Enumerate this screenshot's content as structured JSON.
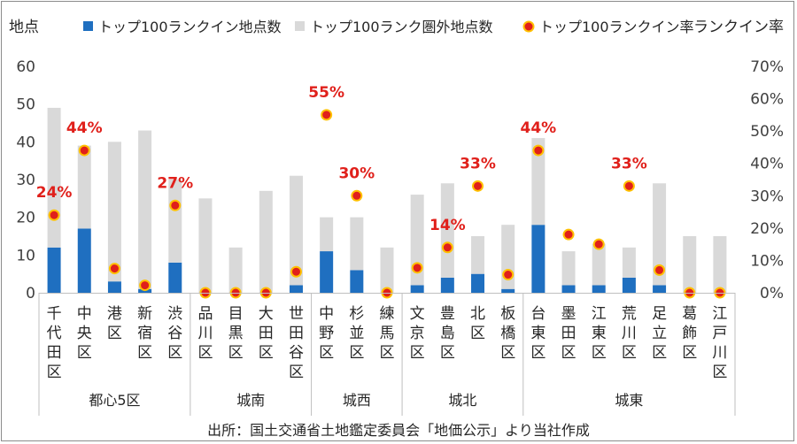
{
  "chart_data": {
    "type": "bar",
    "stacked": true,
    "y_left": {
      "title": "地点",
      "ylim": [
        0,
        60
      ],
      "ticks": [
        0,
        10,
        20,
        30,
        40,
        50,
        60
      ]
    },
    "y_right": {
      "title": "ランクイン率",
      "ylim": [
        0,
        70
      ],
      "ticks": [
        "0%",
        "10%",
        "20%",
        "30%",
        "40%",
        "50%",
        "60%",
        "70%"
      ]
    },
    "legend": {
      "placement": "top",
      "in_rank": "トップ100ランクイン地点数",
      "out_rank": "トップ100ランク圏外地点数",
      "rate": "トップ100ランクイン率"
    },
    "colors": {
      "in_rank": "#1f6fc0",
      "out_rank": "#d9d9d9",
      "rate_fill": "#e0201b",
      "rate_ring": "#ffc000",
      "label": "#e0201b"
    },
    "categories": [
      "千代田区",
      "中央区",
      "港区",
      "新宿区",
      "渋谷区",
      "品川区",
      "目黒区",
      "大田区",
      "世田谷区",
      "中野区",
      "杉並区",
      "練馬区",
      "文京区",
      "豊島区",
      "北区",
      "板橋区",
      "台東区",
      "墨田区",
      "江東区",
      "荒川区",
      "足立区",
      "葛飾区",
      "江戸川区"
    ],
    "series": [
      {
        "name": "トップ100ランクイン地点数",
        "values": [
          12,
          17,
          3,
          1,
          8,
          0,
          0,
          0,
          2,
          11,
          6,
          0,
          2,
          4,
          5,
          1,
          18,
          2,
          2,
          4,
          2,
          0,
          0
        ]
      },
      {
        "name": "トップ100ランク圏外地点数",
        "values": [
          37,
          22,
          37,
          42,
          22,
          25,
          12,
          27,
          29,
          9,
          14,
          12,
          24,
          25,
          10,
          17,
          23,
          9,
          11,
          8,
          27,
          15,
          15
        ]
      },
      {
        "name": "トップ100ランクイン率",
        "values": [
          24,
          44,
          7.5,
          2.3,
          27,
          0,
          0,
          0,
          6.5,
          55,
          30,
          0,
          7.7,
          14,
          33,
          5.6,
          44,
          18,
          15,
          33,
          7,
          0,
          0
        ]
      }
    ],
    "rate_labels": [
      {
        "index": 0,
        "text": "24%"
      },
      {
        "index": 1,
        "text": "44%"
      },
      {
        "index": 4,
        "text": "27%"
      },
      {
        "index": 9,
        "text": "55%"
      },
      {
        "index": 10,
        "text": "30%"
      },
      {
        "index": 13,
        "text": "14%"
      },
      {
        "index": 14,
        "text": "33%"
      },
      {
        "index": 16,
        "text": "44%"
      },
      {
        "index": 19,
        "text": "33%"
      }
    ],
    "groups": [
      {
        "label": "都心5区",
        "start": 0,
        "end": 4
      },
      {
        "label": "城南",
        "start": 5,
        "end": 8
      },
      {
        "label": "城西",
        "start": 9,
        "end": 11
      },
      {
        "label": "城北",
        "start": 12,
        "end": 15
      },
      {
        "label": "城東",
        "start": 16,
        "end": 22
      }
    ],
    "source": "出所：国土交通省土地鑑定委員会「地価公示」より当社作成"
  }
}
